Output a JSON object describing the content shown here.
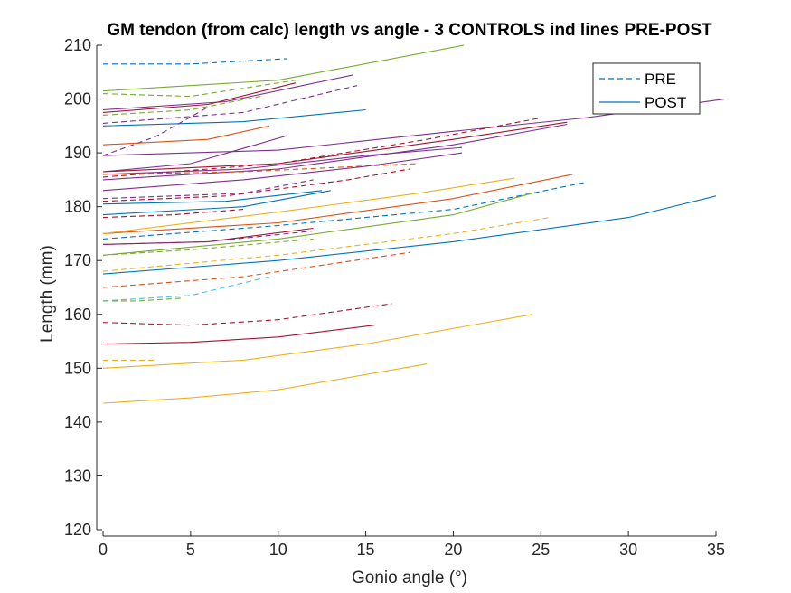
{
  "chart_data": {
    "type": "line",
    "title": "GM tendon (from calc) length vs angle - 3 CONTROLS ind lines PRE-POST",
    "xlabel": "Gonio angle (°)",
    "ylabel": "Length (mm)",
    "xlim": [
      0,
      35
    ],
    "ylim": [
      120,
      210
    ],
    "xticks": [
      "0",
      "5",
      "10",
      "15",
      "20",
      "25",
      "30",
      "35"
    ],
    "yticks": [
      "120",
      "130",
      "140",
      "150",
      "160",
      "170",
      "180",
      "190",
      "200",
      "210"
    ],
    "grid": false,
    "legend": {
      "position": "top-right",
      "entries": [
        {
          "label": "PRE",
          "style": "dashed",
          "color": "#0072bd"
        },
        {
          "label": "POST",
          "style": "solid",
          "color": "#0072bd"
        }
      ]
    },
    "series": [
      {
        "style": "dashed",
        "color": "#0072bd",
        "x": [
          0,
          5,
          10.5
        ],
        "y": [
          206.5,
          206.5,
          207.5
        ]
      },
      {
        "style": "solid",
        "color": "#77ac30",
        "x": [
          0,
          10,
          20.6
        ],
        "y": [
          201.5,
          203.5,
          210
        ]
      },
      {
        "style": "dashed",
        "color": "#77ac30",
        "x": [
          0,
          5,
          11
        ],
        "y": [
          201,
          200.5,
          203.5
        ]
      },
      {
        "style": "solid",
        "color": "#7e2f8e",
        "x": [
          0,
          7,
          14.3
        ],
        "y": [
          198,
          199.5,
          204.5
        ]
      },
      {
        "style": "solid",
        "color": "#a2142f",
        "x": [
          0,
          6,
          11
        ],
        "y": [
          197.5,
          199,
          203
        ]
      },
      {
        "style": "dashed",
        "color": "#7e2f8e",
        "x": [
          0,
          8,
          14.5
        ],
        "y": [
          195.5,
          197.5,
          202.5
        ]
      },
      {
        "style": "dashed",
        "color": "#77ac30",
        "x": [
          0,
          5,
          9
        ],
        "y": [
          197,
          198,
          200.5
        ]
      },
      {
        "style": "solid",
        "color": "#0072bd",
        "x": [
          0,
          8,
          15
        ],
        "y": [
          195,
          195.8,
          198
        ]
      },
      {
        "style": "dashed",
        "color": "#7e2f8e",
        "x": [
          0,
          3,
          6
        ],
        "y": [
          189.5,
          193,
          198.5
        ]
      },
      {
        "style": "solid",
        "color": "#d95319",
        "x": [
          0,
          6,
          9.5
        ],
        "y": [
          191.5,
          192.5,
          195
        ]
      },
      {
        "style": "solid",
        "color": "#7e2f8e",
        "x": [
          0,
          10,
          20,
          27.5,
          35.5
        ],
        "y": [
          189.5,
          190.5,
          194,
          196.5,
          200
        ]
      },
      {
        "style": "solid",
        "color": "#7e2f8e",
        "x": [
          0,
          5,
          10.5
        ],
        "y": [
          186.5,
          188,
          193.2
        ]
      },
      {
        "style": "dashed",
        "color": "#a2142f",
        "x": [
          0,
          10,
          18.5,
          25
        ],
        "y": [
          185.5,
          188,
          192.5,
          196.5
        ]
      },
      {
        "style": "solid",
        "color": "#a2142f",
        "x": [
          0,
          10,
          20,
          26.5
        ],
        "y": [
          186.5,
          188,
          192.5,
          195.7
        ]
      },
      {
        "style": "solid",
        "color": "#7e2f8e",
        "x": [
          0,
          10,
          20,
          26.5
        ],
        "y": [
          185,
          187,
          191.5,
          195.3
        ]
      },
      {
        "style": "solid",
        "color": "#7e2f8e",
        "x": [
          0,
          8,
          15,
          20.5
        ],
        "y": [
          186,
          187,
          189.5,
          191
        ]
      },
      {
        "style": "dashed",
        "color": "#d95319",
        "x": [
          0,
          8,
          18
        ],
        "y": [
          186,
          186.5,
          188
        ]
      },
      {
        "style": "solid",
        "color": "#7e2f8e",
        "x": [
          0,
          8,
          15,
          20.5
        ],
        "y": [
          183,
          185,
          187.5,
          190
        ]
      },
      {
        "style": "dashed",
        "color": "#7e2f8e",
        "x": [
          0,
          8,
          12
        ],
        "y": [
          181.5,
          182.5,
          185
        ]
      },
      {
        "style": "dashed",
        "color": "#a2142f",
        "x": [
          0,
          7,
          14,
          17.5
        ],
        "y": [
          181,
          182,
          185,
          187
        ]
      },
      {
        "style": "solid",
        "color": "#0072bd",
        "x": [
          0,
          7,
          12.5
        ],
        "y": [
          180.5,
          181,
          183
        ]
      },
      {
        "style": "dashed",
        "color": "#0072bd",
        "x": [
          0,
          10,
          20,
          27.5
        ],
        "y": [
          174,
          176.5,
          179.5,
          184.5
        ]
      },
      {
        "style": "solid",
        "color": "#d95319",
        "x": [
          0,
          10,
          20,
          26.8
        ],
        "y": [
          175,
          177,
          181.5,
          186
        ]
      },
      {
        "style": "solid",
        "color": "#edb120",
        "x": [
          0,
          10,
          18,
          23.5
        ],
        "y": [
          175,
          179,
          182.5,
          185.3
        ]
      },
      {
        "style": "solid",
        "color": "#0072bd",
        "x": [
          0,
          8,
          13
        ],
        "y": [
          178.5,
          180,
          183
        ]
      },
      {
        "style": "dashed",
        "color": "#a2142f",
        "x": [
          0,
          4,
          8
        ],
        "y": [
          178,
          178.5,
          179.5
        ]
      },
      {
        "style": "solid",
        "color": "#77ac30",
        "x": [
          0,
          10,
          20,
          24.5
        ],
        "y": [
          171,
          174,
          178.5,
          182.5
        ]
      },
      {
        "style": "dashed",
        "color": "#edb120",
        "x": [
          0,
          10,
          20,
          25.5
        ],
        "y": [
          168,
          171,
          175,
          178
        ]
      },
      {
        "style": "solid",
        "color": "#0072bd",
        "x": [
          0,
          10,
          20,
          30,
          35
        ],
        "y": [
          167.5,
          170,
          173.5,
          178,
          182
        ]
      },
      {
        "style": "solid",
        "color": "#a2142f",
        "x": [
          0,
          6,
          12
        ],
        "y": [
          173,
          173.5,
          176
        ]
      },
      {
        "style": "dashed",
        "color": "#7e2f8e",
        "x": [
          0,
          6,
          12
        ],
        "y": [
          173,
          173.5,
          175.5
        ]
      },
      {
        "style": "dashed",
        "color": "#77ac30",
        "x": [
          0,
          5,
          12
        ],
        "y": [
          171,
          172,
          174
        ]
      },
      {
        "style": "dashed",
        "color": "#d95319",
        "x": [
          0,
          8,
          17.5
        ],
        "y": [
          165,
          167,
          171.5
        ]
      },
      {
        "style": "dashed",
        "color": "#4dbeee",
        "x": [
          0,
          5,
          9.5
        ],
        "y": [
          162.5,
          163.5,
          167
        ]
      },
      {
        "style": "dashed",
        "color": "#77ac30",
        "x": [
          0,
          2,
          4.5
        ],
        "y": [
          162.5,
          162.5,
          163
        ]
      },
      {
        "style": "dashed",
        "color": "#a2142f",
        "x": [
          0,
          5,
          10,
          16.5
        ],
        "y": [
          158.5,
          158,
          159,
          162
        ]
      },
      {
        "style": "solid",
        "color": "#a2142f",
        "x": [
          0,
          5,
          10,
          15.5
        ],
        "y": [
          154.5,
          154.8,
          155.8,
          158
        ]
      },
      {
        "style": "solid",
        "color": "#edb120",
        "x": [
          0,
          8,
          15,
          24.5
        ],
        "y": [
          150,
          151.5,
          154.5,
          160
        ]
      },
      {
        "style": "dashed",
        "color": "#edb120",
        "x": [
          0,
          1.5,
          3
        ],
        "y": [
          151.5,
          151.5,
          151.5
        ]
      },
      {
        "style": "solid",
        "color": "#edb120",
        "x": [
          0,
          5,
          10,
          18.5
        ],
        "y": [
          143.5,
          144.5,
          146,
          150.8
        ]
      }
    ]
  }
}
